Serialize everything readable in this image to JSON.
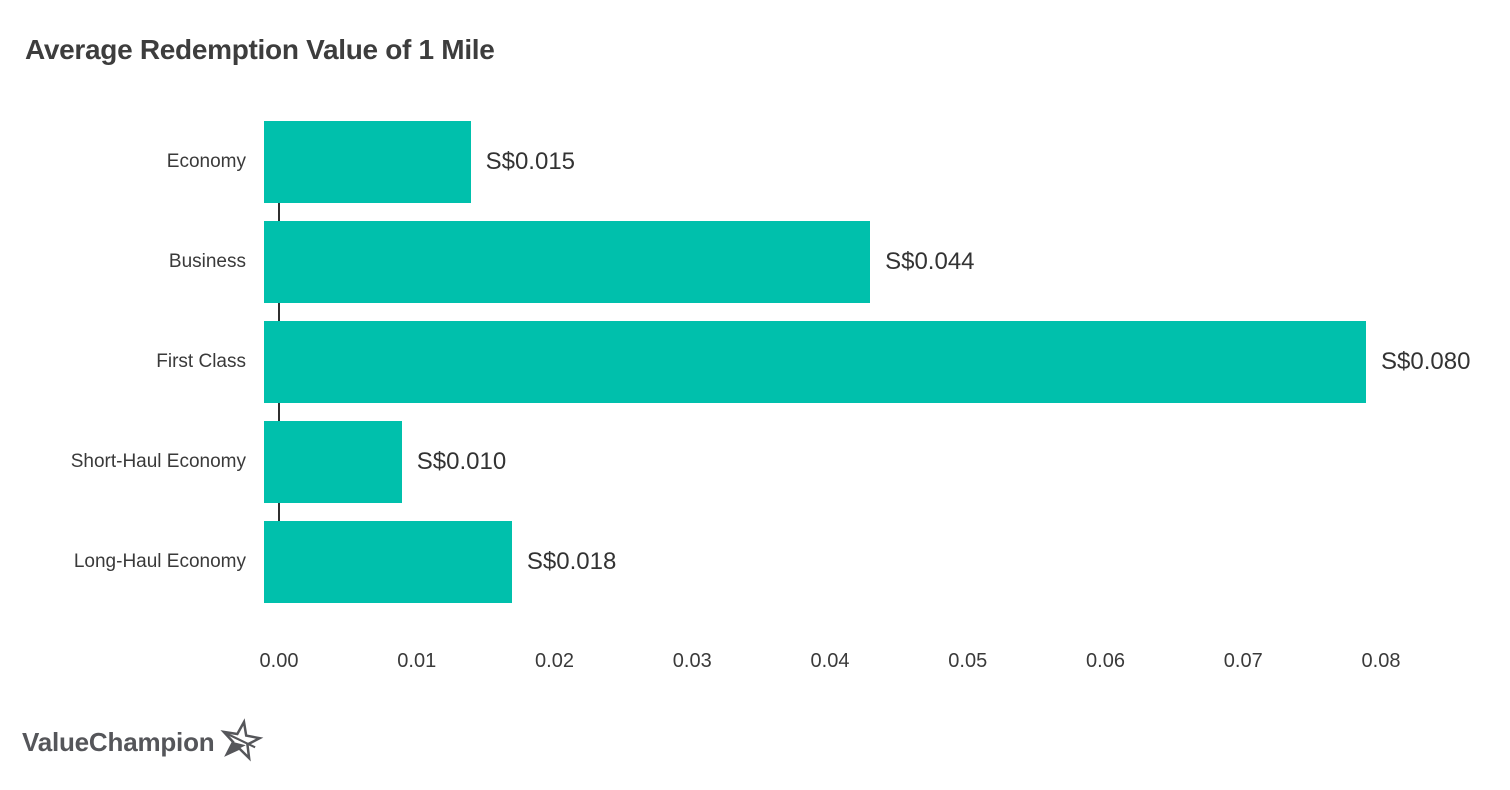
{
  "title": "Average Redemption Value of 1 Mile",
  "colors": {
    "bar": "#00c0ac",
    "title_text": "#3d3d3d",
    "category_text": "#3a3a3a",
    "value_text": "#333333",
    "axis_line": "#2f2f2f",
    "tick_text": "#3a3a3a",
    "logo_text": "#55565a"
  },
  "chart_data": {
    "type": "bar",
    "orientation": "horizontal",
    "title": "Average Redemption Value of 1 Mile",
    "categories": [
      "Economy",
      "Business",
      "First Class",
      "Short-Haul Economy",
      "Long-Haul Economy"
    ],
    "values": [
      0.015,
      0.044,
      0.08,
      0.01,
      0.018
    ],
    "value_labels": [
      "S$0.015",
      "S$0.044",
      "S$0.080",
      "S$0.010",
      "S$0.018"
    ],
    "xlabel": "",
    "ylabel": "",
    "xlim": [
      0,
      0.08
    ],
    "x_ticks": [
      "0.00",
      "0.01",
      "0.02",
      "0.03",
      "0.04",
      "0.05",
      "0.06",
      "0.07",
      "0.08"
    ],
    "grid": false,
    "legend": false,
    "bar_color": "#00c0ac"
  },
  "logo": {
    "text": "ValueChampion",
    "icon": "star-icon"
  }
}
